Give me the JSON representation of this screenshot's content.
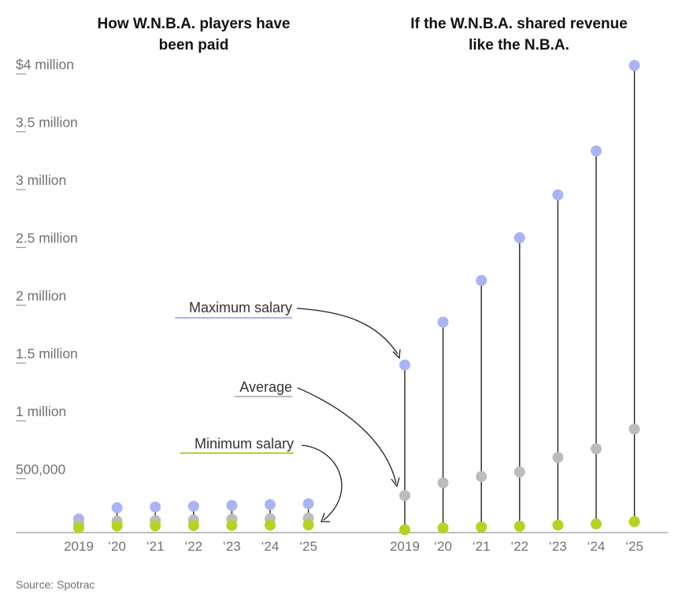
{
  "chart_data": {
    "type": "scatter",
    "source": "Source: Spotrac",
    "y_axis": {
      "min": 0,
      "max": 4000000,
      "ticks": [
        {
          "value": 500000,
          "label": "500,000"
        },
        {
          "value": 1000000,
          "label": "1 million"
        },
        {
          "value": 1500000,
          "label": "1.5 million"
        },
        {
          "value": 2000000,
          "label": "2 million"
        },
        {
          "value": 2500000,
          "label": "2.5 million"
        },
        {
          "value": 3000000,
          "label": "3 million"
        },
        {
          "value": 3500000,
          "label": "3.5 million"
        },
        {
          "value": 4000000,
          "label": "$4 million"
        }
      ]
    },
    "colors": {
      "max": "#a9b4f5",
      "avg": "#bcbcbc",
      "min": "#b6d223",
      "stem": "#222222",
      "axis": "#999999"
    },
    "series_names": {
      "max": "Maximum salary",
      "avg": "Average",
      "min": "Minimum salary"
    },
    "panels": [
      {
        "title": [
          "How W.N.B.A. players have",
          "been paid"
        ],
        "categories": [
          "2019",
          "‘20",
          "‘21",
          "‘22",
          "‘23",
          "‘24",
          "‘25"
        ],
        "max": [
          117500,
          215000,
          221450,
          228094,
          234936,
          241984,
          249244
        ],
        "avg": [
          75000,
          100000,
          104000,
          110000,
          115000,
          120000,
          125000
        ],
        "min": [
          41965,
          57000,
          58710,
          60471,
          62285,
          64154,
          66079
        ]
      },
      {
        "title": [
          "If the W.N.B.A. shared revenue",
          "like the N.B.A."
        ],
        "categories": [
          "2019",
          "‘20",
          "‘21",
          "‘22",
          "‘23",
          "‘24",
          "‘25"
        ],
        "max": [
          1450000,
          1820000,
          2180000,
          2550000,
          2920000,
          3300000,
          4040000
        ],
        "avg": [
          320000,
          430000,
          485000,
          525000,
          650000,
          725000,
          895000
        ],
        "min": [
          25000,
          40000,
          48000,
          55000,
          65000,
          75000,
          95000
        ]
      }
    ]
  }
}
